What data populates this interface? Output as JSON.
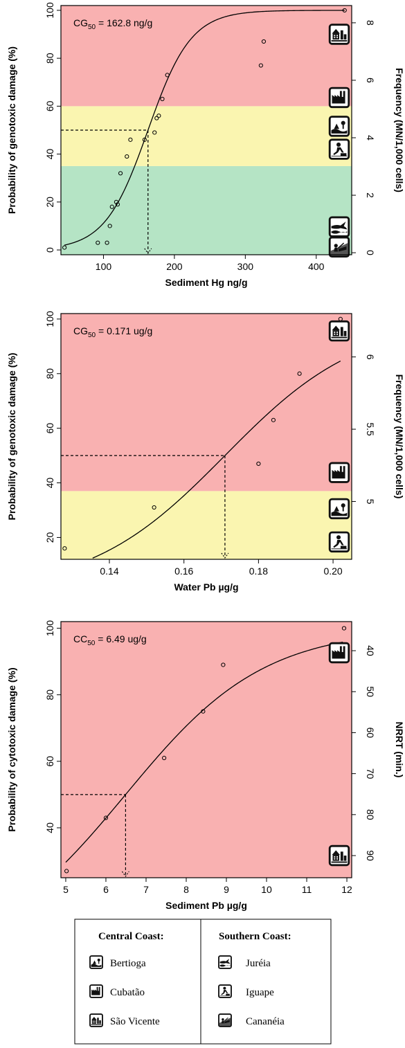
{
  "colors": {
    "red": "#f9b1b1",
    "yellow": "#faf5b0",
    "green": "#b5e4c5"
  },
  "chart_data": [
    {
      "type": "scatter",
      "annotation": "162.8 ng/g",
      "annotation_prefix": "CG",
      "annotation_sub": "50",
      "annotation_mid": " = ",
      "xlabel": "Sediment Hg ng/g",
      "ylabel": "Probability of genotoxic damage (%)",
      "y2label": "Frequency (MN/1,000 cells)",
      "xlim": [
        40,
        450
      ],
      "ylim": [
        -2,
        102
      ],
      "y2lim": [
        -0.07,
        8.6
      ],
      "xticks": [
        "100",
        "200",
        "300",
        "400"
      ],
      "xtick_values": [
        100,
        200,
        300,
        400
      ],
      "yticks": [
        "0",
        "20",
        "40",
        "60",
        "80",
        "100"
      ],
      "ytick_values": [
        0,
        20,
        40,
        60,
        80,
        100
      ],
      "y2ticks": [
        "0",
        "2",
        "4",
        "6",
        "8"
      ],
      "y2tick_values": [
        0,
        2,
        4,
        6,
        8
      ],
      "bands": [
        {
          "from": -2,
          "to": 35,
          "color": "green"
        },
        {
          "from": 35,
          "to": 60,
          "color": "yellow"
        },
        {
          "from": 60,
          "to": 102,
          "color": "red"
        }
      ],
      "threshold": {
        "x": 162.8,
        "y": 50
      },
      "curve": {
        "x50": 162.8,
        "slope": 0.033,
        "x_from": 45,
        "x_to": 440
      },
      "points": {
        "x": [
          45,
          92,
          105,
          109,
          112,
          118,
          120,
          124,
          133,
          138,
          158,
          172,
          175,
          178,
          183,
          190,
          322,
          326,
          440
        ],
        "y": [
          1,
          3,
          3,
          10,
          18,
          20,
          19,
          32,
          39,
          46,
          46,
          49,
          55,
          56,
          63,
          73,
          77,
          87,
          100
        ]
      },
      "icons": [
        {
          "name": "sao-vicente-icon",
          "y2": 7.6
        },
        {
          "name": "cubatao-icon",
          "y2": 5.4
        },
        {
          "name": "bertioga-icon",
          "y2": 4.4
        },
        {
          "name": "iguape-icon",
          "y2": 3.6
        },
        {
          "name": "jureia-icon",
          "y2": 0.9
        },
        {
          "name": "cananeia-icon",
          "y2": 0.2
        }
      ]
    },
    {
      "type": "scatter",
      "annotation": "0.171 ug/g",
      "annotation_prefix": "CG",
      "annotation_sub": "50",
      "annotation_mid": " = ",
      "xlabel": "Water Pb µg/g",
      "ylabel": "Probability of genotoxic damage (%)",
      "y2label": "Frequency (MN/1,000 cells)",
      "xlim": [
        0.127,
        0.205
      ],
      "ylim": [
        12,
        102
      ],
      "y2lim": [
        4.6,
        6.3
      ],
      "xticks": [
        "0.14",
        "0.16",
        "0.18",
        "0.20"
      ],
      "xtick_values": [
        0.14,
        0.16,
        0.18,
        0.2
      ],
      "yticks": [
        "20",
        "40",
        "60",
        "80",
        "100"
      ],
      "ytick_values": [
        20,
        40,
        60,
        80,
        100
      ],
      "y2ticks": [
        "5",
        "5.5",
        "6"
      ],
      "y2tick_values": [
        5,
        5.5,
        6
      ],
      "bands": [
        {
          "from": 12,
          "to": 37,
          "color": "yellow"
        },
        {
          "from": 37,
          "to": 102,
          "color": "red"
        }
      ],
      "threshold": {
        "x": 0.171,
        "y": 50
      },
      "curve": {
        "x50": 0.171,
        "slope": 55,
        "x_from": 0.1355,
        "x_to": 0.202
      },
      "points": {
        "x": [
          0.128,
          0.152,
          0.18,
          0.184,
          0.191,
          0.202
        ],
        "y": [
          16,
          31,
          47,
          63,
          80,
          100
        ]
      },
      "icons": [
        {
          "name": "sao-vicente-icon",
          "y2": 6.18
        },
        {
          "name": "cubatao-icon",
          "y2": 5.2
        },
        {
          "name": "bertioga-icon",
          "y2": 4.95
        },
        {
          "name": "iguape-icon",
          "y2": 4.72
        }
      ]
    },
    {
      "type": "scatter",
      "annotation": "6.49 ug/g",
      "annotation_prefix": "CC",
      "annotation_sub": "50",
      "annotation_mid": " = ",
      "xlabel": "Sediment Pb µg/g",
      "ylabel": "Probability of cytotoxic damage (%)",
      "y2label": "NRRT (min.)",
      "xlim": [
        4.88,
        12.12
      ],
      "ylim": [
        25,
        102
      ],
      "y2lim": [
        95.4,
        32.9
      ],
      "xticks": [
        "5",
        "6",
        "7",
        "8",
        "9",
        "10",
        "11",
        "12"
      ],
      "xtick_values": [
        5,
        6,
        7,
        8,
        9,
        10,
        11,
        12
      ],
      "yticks": [
        "40",
        "60",
        "80",
        "100"
      ],
      "ytick_values": [
        40,
        60,
        80,
        100
      ],
      "y2ticks": [
        "40",
        "50",
        "60",
        "70",
        "80",
        "90"
      ],
      "y2tick_values": [
        40,
        50,
        60,
        70,
        80,
        90
      ],
      "bands": [
        {
          "from": 25,
          "to": 102,
          "color": "red"
        }
      ],
      "threshold": {
        "x": 6.49,
        "y": 50
      },
      "curve": {
        "x50": 6.49,
        "slope": 0.58,
        "x_from": 5.0,
        "x_to": 11.9
      },
      "points": {
        "x": [
          5.02,
          6.0,
          7.45,
          8.42,
          8.92,
          11.93
        ],
        "y": [
          27,
          43,
          61,
          75,
          89,
          100
        ]
      },
      "icons": [
        {
          "name": "cubatao-icon",
          "y2": 40.5
        },
        {
          "name": "sao-vicente-icon",
          "y2": 90
        }
      ]
    }
  ],
  "legend": {
    "central_header": "Central Coast:",
    "southern_header": "Southern Coast:",
    "central": [
      {
        "label": "Bertioga",
        "icon": "bertioga-icon"
      },
      {
        "label": "Cubatão",
        "icon": "cubatao-icon"
      },
      {
        "label": "São Vicente",
        "icon": "sao-vicente-icon"
      }
    ],
    "southern": [
      {
        "label": "Juréia",
        "icon": "jureia-icon"
      },
      {
        "label": "Iguape",
        "icon": "iguape-icon"
      },
      {
        "label": "Cananéia",
        "icon": "cananeia-icon"
      }
    ]
  }
}
